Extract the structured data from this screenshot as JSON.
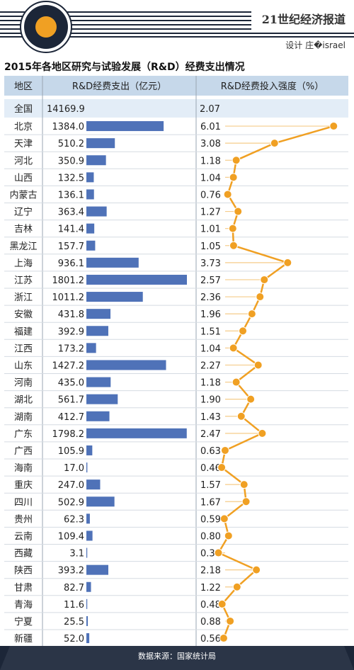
{
  "header": {
    "brand": "21世纪经济报道",
    "design": "设计 庄�israel"
  },
  "title": "2015年各地区研究与试验发展（R&D）经费支出情况",
  "columns": {
    "region": "地区",
    "spend": "R&D经费支出（亿元）",
    "intensity": "R&D经费投入强度（%）"
  },
  "footer": {
    "source": "数据来源：国家统计局"
  },
  "colors": {
    "bar": "#4f72b8",
    "line": "#f0a023",
    "header_bg": "#c6d8ea",
    "dark": "#1c2638"
  },
  "chart_data": {
    "type": "table",
    "title": "2015年各地区研究与试验发展（R&D）经费支出情况",
    "national": {
      "region": "全国",
      "spend": "14169.9",
      "intensity": "2.07"
    },
    "regions": [
      "北京",
      "天津",
      "河北",
      "山西",
      "内蒙古",
      "辽宁",
      "吉林",
      "黑龙江",
      "上海",
      "江苏",
      "浙江",
      "安徽",
      "福建",
      "江西",
      "山东",
      "河南",
      "湖北",
      "湖南",
      "广东",
      "广西",
      "海南",
      "重庆",
      "四川",
      "贵州",
      "云南",
      "西藏",
      "陕西",
      "甘肃",
      "青海",
      "宁夏",
      "新疆"
    ],
    "series": [
      {
        "name": "R&D经费支出（亿元）",
        "type": "bar",
        "values": [
          1384.0,
          510.2,
          350.9,
          132.5,
          136.1,
          363.4,
          141.4,
          157.7,
          936.1,
          1801.2,
          1011.2,
          431.8,
          392.9,
          173.2,
          1427.2,
          435.0,
          561.7,
          412.7,
          1798.2,
          105.9,
          17.0,
          247.0,
          502.9,
          62.3,
          109.4,
          3.1,
          393.2,
          82.7,
          11.6,
          25.5,
          52.0
        ],
        "labels": [
          "1384.0",
          "510.2",
          "350.9",
          "132.5",
          "136.1",
          "363.4",
          "141.4",
          "157.7",
          "936.1",
          "1801.2",
          "1011.2",
          "431.8",
          "392.9",
          "173.2",
          "1427.2",
          "435.0",
          "561.7",
          "412.7",
          "1798.2",
          "105.9",
          "17.0",
          "247.0",
          "502.9",
          "62.3",
          "109.4",
          "3.1",
          "393.2",
          "82.7",
          "11.6",
          "25.5",
          "52.0"
        ]
      },
      {
        "name": "R&D经费投入强度（%）",
        "type": "line",
        "values": [
          6.01,
          3.08,
          1.18,
          1.04,
          0.76,
          1.27,
          1.01,
          1.05,
          3.73,
          2.57,
          2.36,
          1.96,
          1.51,
          1.04,
          2.27,
          1.18,
          1.9,
          1.43,
          2.47,
          0.63,
          0.46,
          1.57,
          1.67,
          0.59,
          0.8,
          0.3,
          2.18,
          1.22,
          0.48,
          0.88,
          0.56
        ],
        "labels": [
          "6.01",
          "3.08",
          "1.18",
          "1.04",
          "0.76",
          "1.27",
          "1.01",
          "1.05",
          "3.73",
          "2.57",
          "2.36",
          "1.96",
          "1.51",
          "1.04",
          "2.27",
          "1.18",
          "1.90",
          "1.43",
          "2.47",
          "0.63",
          "0.46",
          "1.57",
          "1.67",
          "0.59",
          "0.80",
          "0.30",
          "2.18",
          "1.22",
          "0.48",
          "0.88",
          "0.56"
        ]
      }
    ]
  }
}
